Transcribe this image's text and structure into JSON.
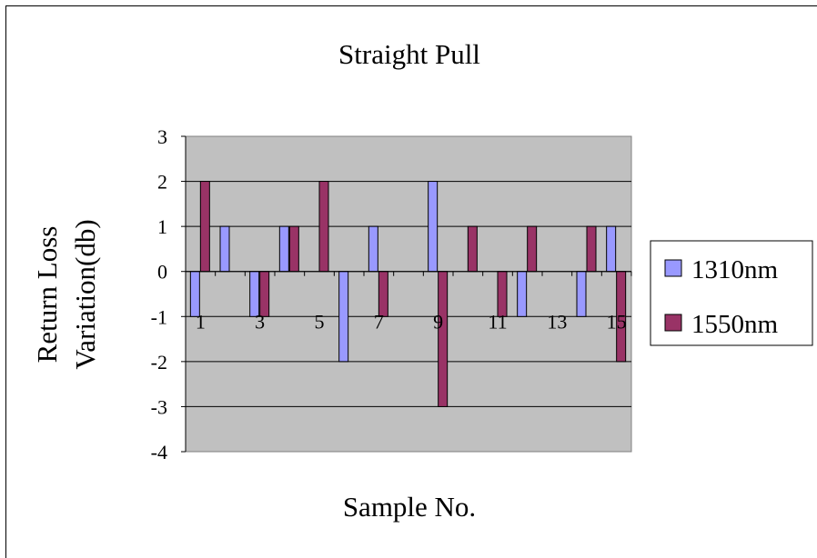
{
  "chart_data": {
    "type": "bar",
    "title": "Straight Pull",
    "xlabel": "Sample No.",
    "ylabel_lines": [
      "Return Loss",
      "Variation(db)"
    ],
    "categories": [
      "1",
      "2",
      "3",
      "4",
      "5",
      "6",
      "7",
      "8",
      "9",
      "10",
      "11",
      "12",
      "13",
      "14",
      "15"
    ],
    "x_tick_labels": [
      "1",
      "3",
      "5",
      "7",
      "9",
      "11",
      "13",
      "15"
    ],
    "ylim": [
      -4,
      3
    ],
    "y_ticks": [
      -4,
      -3,
      -2,
      -1,
      0,
      1,
      2,
      3
    ],
    "grid": true,
    "legend_position": "right",
    "plot_background": "#c0c0c0",
    "series": [
      {
        "name": "1310nm",
        "color": "#9999ff",
        "values": [
          -1,
          1,
          -1,
          1,
          0,
          -2,
          1,
          0,
          2,
          0,
          0,
          -1,
          0,
          -1,
          1
        ]
      },
      {
        "name": "1550nm",
        "color": "#993366",
        "values": [
          2,
          0,
          -1,
          1,
          2,
          0,
          -1,
          0,
          -3,
          1,
          -1,
          1,
          0,
          1,
          -2
        ]
      }
    ]
  }
}
